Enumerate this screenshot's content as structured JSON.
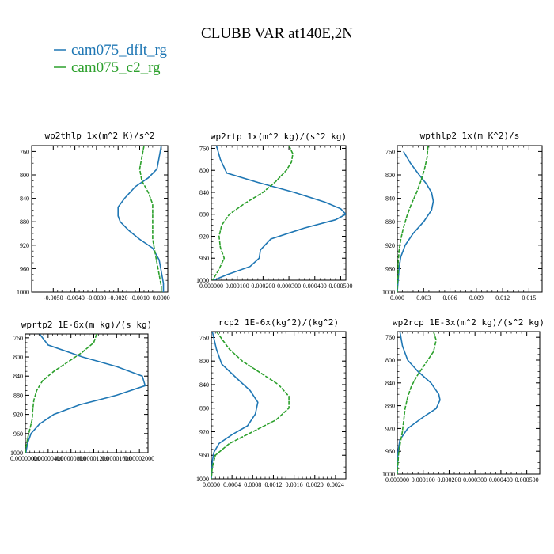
{
  "figure": {
    "title": "CLUBB VAR at140E,2N"
  },
  "legend": [
    {
      "name": "cam075_dflt_rg",
      "color": "#1f77b4",
      "dashed": false
    },
    {
      "name": "cam075_c2_rg",
      "color": "#2ca02c",
      "dashed": true
    }
  ],
  "chart_data": [
    {
      "type": "line",
      "title": "wp2thlp   1x(m^2 K)/s^2",
      "ylim": [
        1000,
        750
      ],
      "yticks": [
        "760",
        "800",
        "840",
        "880",
        "920",
        "960",
        "1000"
      ],
      "xlim": [
        -0.006,
        0.0003
      ],
      "xticks": [
        "-0.0050",
        "-0.0040",
        "-0.0030",
        "-0.0020",
        "-0.0010",
        "0.0000"
      ],
      "series": [
        {
          "name": "cam075_dflt_rg",
          "y": [
            750,
            770,
            790,
            805,
            820,
            840,
            855,
            870,
            880,
            895,
            910,
            925,
            945,
            965,
            985,
            1000
          ],
          "x": [
            0.0,
            -0.0001,
            -0.0002,
            -0.0006,
            -0.0012,
            -0.0017,
            -0.002,
            -0.002,
            -0.0019,
            -0.0015,
            -0.001,
            -0.0004,
            -0.0001,
            0.0,
            0.0001,
            0.0001
          ]
        },
        {
          "name": "cam075_c2_rg",
          "y": [
            750,
            770,
            790,
            810,
            830,
            850,
            870,
            890,
            910,
            930,
            950,
            970,
            990,
            1000
          ],
          "x": [
            -0.0008,
            -0.0009,
            -0.001,
            -0.0009,
            -0.0006,
            -0.0004,
            -0.0004,
            -0.0004,
            -0.0004,
            -0.0003,
            -0.0002,
            -0.0001,
            0.0,
            0.0
          ]
        }
      ]
    },
    {
      "type": "line",
      "title": "wp2rtp   1x(m^2 kg)/(s^2 kg)",
      "ylim": [
        1000,
        755
      ],
      "yticks": [
        "760",
        "800",
        "840",
        "880",
        "920",
        "960",
        "1000"
      ],
      "xlim": [
        0,
        0.00052
      ],
      "xticks": [
        "0.000000",
        "0.000100",
        "0.000200",
        "0.000300",
        "0.000400",
        "0.000500"
      ],
      "series": [
        {
          "name": "cam075_dflt_rg",
          "y": [
            755,
            780,
            805,
            822,
            840,
            858,
            870,
            880,
            890,
            905,
            925,
            945,
            960,
            975,
            990,
            1000
          ],
          "x": [
            2e-05,
            3.5e-05,
            6e-05,
            0.00018,
            0.00032,
            0.00044,
            0.0005,
            0.00052,
            0.00048,
            0.00036,
            0.00023,
            0.00019,
            0.000185,
            0.00015,
            6e-05,
            1e-05
          ]
        },
        {
          "name": "cam075_c2_rg",
          "y": [
            755,
            770,
            785,
            800,
            820,
            840,
            860,
            880,
            900,
            920,
            940,
            960,
            980,
            1000
          ],
          "x": [
            0.0003,
            0.000315,
            0.00031,
            0.00029,
            0.00025,
            0.0002,
            0.00013,
            7e-05,
            4e-05,
            3e-05,
            3.5e-05,
            5e-05,
            3e-05,
            5e-06
          ]
        }
      ]
    },
    {
      "type": "line",
      "title": "wpthlp2   1x(m K^2)/s",
      "ylim": [
        1000,
        750
      ],
      "yticks": [
        "760",
        "800",
        "840",
        "880",
        "920",
        "960",
        "1000"
      ],
      "xlim": [
        0,
        0.0165
      ],
      "xticks": [
        "0.000",
        "0.003",
        "0.006",
        "0.009",
        "0.012",
        "0.015"
      ],
      "series": [
        {
          "name": "cam075_dflt_rg",
          "y": [
            760,
            780,
            800,
            815,
            830,
            845,
            860,
            880,
            900,
            920,
            940,
            960,
            980,
            1000
          ],
          "x": [
            0.0007,
            0.0015,
            0.0025,
            0.0033,
            0.0039,
            0.0041,
            0.0039,
            0.003,
            0.0018,
            0.0009,
            0.0004,
            0.0002,
            0.0001,
            0.0
          ]
        },
        {
          "name": "cam075_c2_rg",
          "y": [
            750,
            770,
            790,
            810,
            830,
            850,
            870,
            890,
            910,
            930,
            950,
            970,
            990,
            1000
          ],
          "x": [
            0.0035,
            0.0034,
            0.0031,
            0.0027,
            0.0022,
            0.0016,
            0.0011,
            0.0007,
            0.0004,
            0.0002,
            0.0001,
            0.0001,
            0.0,
            0.0
          ]
        }
      ]
    },
    {
      "type": "line",
      "title": "wprtp2   1E-6x(m kg)/(s kg)",
      "ylim": [
        1000,
        752
      ],
      "yticks": [
        "760",
        "800",
        "840",
        "880",
        "920",
        "960",
        "1000"
      ],
      "xlim": [
        0,
        2.15e-05
      ],
      "xticks": [
        "0.00000000",
        "0.00000400",
        "0.00000800",
        "0.00001200",
        "0.00001600",
        "0.00002000"
      ],
      "series": [
        {
          "name": "cam075_dflt_rg",
          "y": [
            752,
            775,
            800,
            820,
            840,
            860,
            880,
            900,
            920,
            940,
            960,
            980,
            1000
          ],
          "x": [
            2.5e-06,
            4e-06,
            1e-05,
            1.6e-05,
            2.05e-05,
            2.1e-05,
            1.6e-05,
            9.5e-06,
            5e-06,
            2.5e-06,
            1e-06,
            4e-07,
            1e-07
          ]
        },
        {
          "name": "cam075_c2_rg",
          "y": [
            752,
            770,
            790,
            810,
            830,
            850,
            870,
            890,
            910,
            930,
            950,
            970,
            990,
            1000
          ],
          "x": [
            1.25e-05,
            1.2e-05,
            1e-05,
            7.5e-06,
            5e-06,
            3e-06,
            2e-06,
            1.5e-06,
            1.3e-06,
            1.2e-06,
            8e-07,
            4e-07,
            1e-07,
            0.0
          ]
        }
      ]
    },
    {
      "type": "line",
      "title": "rcp2   1E-6x(kg^2)/(kg^2)",
      "ylim": [
        1000,
        750
      ],
      "yticks": [
        "760",
        "800",
        "840",
        "880",
        "920",
        "960",
        "1000"
      ],
      "xlim": [
        0,
        0.0026
      ],
      "xticks": [
        "0.0000",
        "0.0004",
        "0.0008",
        "0.0012",
        "0.0016",
        "0.0020",
        "0.0024"
      ],
      "series": [
        {
          "name": "cam075_dflt_rg",
          "y": [
            750,
            780,
            805,
            830,
            850,
            870,
            890,
            910,
            925,
            940,
            955,
            970,
            985,
            1000
          ],
          "x": [
            2e-05,
            0.0001,
            0.0002,
            0.0005,
            0.00075,
            0.0009,
            0.00085,
            0.0007,
            0.0004,
            0.00015,
            5e-05,
            2e-05,
            1e-05,
            0.0
          ]
        },
        {
          "name": "cam075_c2_rg",
          "y": [
            750,
            780,
            800,
            820,
            840,
            860,
            880,
            900,
            920,
            940,
            960,
            980,
            1000
          ],
          "x": [
            0.0001,
            0.00035,
            0.0006,
            0.00095,
            0.0013,
            0.0015,
            0.0015,
            0.00125,
            0.0008,
            0.00035,
            8e-05,
            2e-05,
            0.0
          ]
        }
      ]
    },
    {
      "type": "line",
      "title": "wp2rcp   1E-3x(m^2 kg)/(s^2 kg)",
      "ylim": [
        1000,
        750
      ],
      "yticks": [
        "760",
        "800",
        "840",
        "880",
        "920",
        "960",
        "1000"
      ],
      "xlim": [
        0,
        0.00055
      ],
      "xticks": [
        "0.000000",
        "0.000100",
        "0.000200",
        "0.000300",
        "0.000400",
        "0.000500"
      ],
      "series": [
        {
          "name": "cam075_dflt_rg",
          "y": [
            750,
            775,
            800,
            820,
            840,
            860,
            870,
            885,
            900,
            920,
            940,
            960,
            980,
            1000
          ],
          "x": [
            1e-05,
            2e-05,
            4e-05,
            8e-05,
            0.00013,
            0.00016,
            0.000165,
            0.00015,
            0.0001,
            4e-05,
            1e-05,
            3e-06,
            1e-06,
            0.0
          ]
        },
        {
          "name": "cam075_c2_rg",
          "y": [
            750,
            765,
            785,
            805,
            825,
            845,
            865,
            885,
            905,
            925,
            945,
            965,
            985,
            1000
          ],
          "x": [
            0.00014,
            0.00015,
            0.00014,
            0.00011,
            8e-05,
            5.5e-05,
            4e-05,
            3e-05,
            2.5e-05,
            2e-05,
            1.2e-05,
            5e-06,
            2e-06,
            0.0
          ]
        }
      ]
    }
  ]
}
